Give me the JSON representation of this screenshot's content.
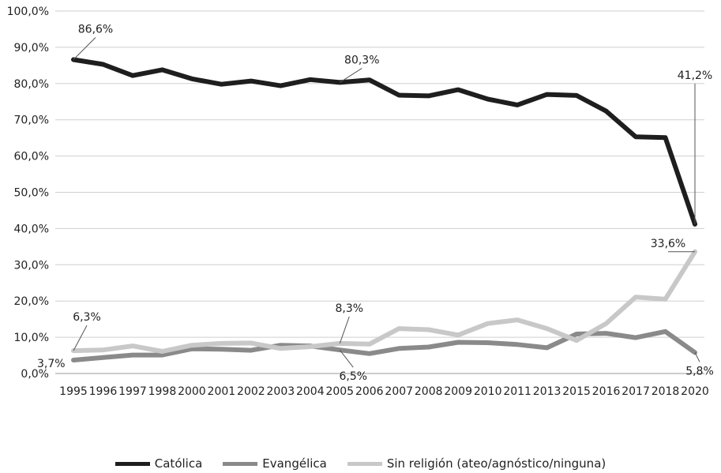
{
  "chart_data": {
    "type": "line",
    "title": "",
    "xlabel": "",
    "ylabel": "",
    "ylim": [
      0,
      100
    ],
    "yticks": [
      "0,0%",
      "10,0%",
      "20,0%",
      "30,0%",
      "40,0%",
      "50,0%",
      "60,0%",
      "70,0%",
      "80,0%",
      "90,0%",
      "100,0%"
    ],
    "categories": [
      "1995",
      "1996",
      "1997",
      "1998",
      "2000",
      "2001",
      "2002",
      "2003",
      "2004",
      "2005",
      "2006",
      "2007",
      "2008",
      "2009",
      "2010",
      "2011",
      "2013",
      "2015",
      "2016",
      "2017",
      "2018",
      "2020"
    ],
    "grid": true,
    "legend_position": "bottom",
    "series": [
      {
        "name": "Católica",
        "color": "#1e1e1e",
        "values": [
          86.6,
          85.3,
          82.2,
          83.8,
          81.3,
          79.8,
          80.7,
          79.4,
          81.1,
          80.3,
          81.0,
          76.8,
          76.6,
          78.3,
          75.7,
          74.1,
          77.0,
          76.7,
          72.4,
          65.3,
          65.1,
          41.2
        ]
      },
      {
        "name": "Evangélica",
        "color": "#8a8a8a",
        "values": [
          3.7,
          4.4,
          5.1,
          5.1,
          6.8,
          6.7,
          6.4,
          7.8,
          7.6,
          6.5,
          5.5,
          6.9,
          7.3,
          8.6,
          8.5,
          8.0,
          7.1,
          10.9,
          11.1,
          9.9,
          11.6,
          5.8
        ]
      },
      {
        "name": "Sin religión (ateo/agnóstico/ninguna)",
        "color": "#c8c8c8",
        "values": [
          6.3,
          6.5,
          7.6,
          6.1,
          7.8,
          8.3,
          8.4,
          6.9,
          7.4,
          8.3,
          8.1,
          12.4,
          12.1,
          10.6,
          13.8,
          14.8,
          12.4,
          9.1,
          13.8,
          21.1,
          20.5,
          33.6
        ]
      }
    ],
    "annotations": [
      {
        "series": 0,
        "index": 0,
        "text": "86,6%"
      },
      {
        "series": 0,
        "index": 9,
        "text": "80,3%"
      },
      {
        "series": 0,
        "index": 21,
        "text": "41,2%"
      },
      {
        "series": 1,
        "index": 0,
        "text": "3,7%"
      },
      {
        "series": 1,
        "index": 9,
        "text": "6,5%"
      },
      {
        "series": 1,
        "index": 21,
        "text": "5,8%"
      },
      {
        "series": 2,
        "index": 0,
        "text": "6,3%"
      },
      {
        "series": 2,
        "index": 9,
        "text": "8,3%"
      },
      {
        "series": 2,
        "index": 21,
        "text": "33,6%"
      }
    ]
  }
}
